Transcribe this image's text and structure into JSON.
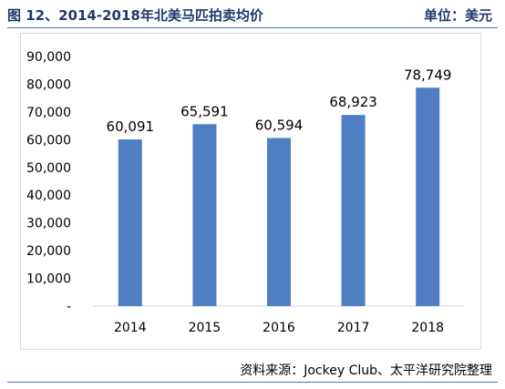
{
  "header": {
    "title": "图 12、2014-2018年北美马匹拍卖均价",
    "unit": "单位：美元"
  },
  "footer": {
    "source": "资料来源：Jockey Club、太平洋研究院整理"
  },
  "colors": {
    "bar": "#4f7ec3",
    "accent": "#1f3a6b"
  },
  "chart_data": {
    "type": "bar",
    "categories": [
      "2014",
      "2015",
      "2016",
      "2017",
      "2018"
    ],
    "values": [
      60091,
      65591,
      60594,
      68923,
      78749
    ],
    "value_labels": [
      "60,091",
      "65,591",
      "60,594",
      "68,923",
      "78,749"
    ],
    "yticks": [
      "-",
      "10,000",
      "20,000",
      "30,000",
      "40,000",
      "50,000",
      "60,000",
      "70,000",
      "80,000",
      "90,000"
    ],
    "ylim": [
      0,
      90000
    ],
    "grid": false
  }
}
